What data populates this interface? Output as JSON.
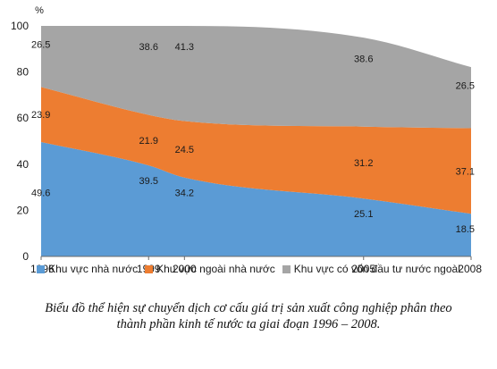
{
  "chart_data": {
    "type": "area",
    "stacked": true,
    "ylabel": "%",
    "ylim": [
      0,
      100
    ],
    "yticks": [
      0,
      20,
      40,
      60,
      80,
      100
    ],
    "x": [
      1996,
      1999,
      2000,
      2005,
      2008
    ],
    "x_tick_labels": [
      "1996",
      "1999",
      "2000",
      "2005",
      "2008"
    ],
    "series": [
      {
        "name": "Khu vực nhà nước",
        "color": "#5b9bd5",
        "values": [
          49.6,
          39.5,
          34.2,
          25.1,
          18.5
        ],
        "labels": [
          "49.6",
          "39.5",
          "34.2",
          "25.1",
          "18.5"
        ]
      },
      {
        "name": "Khu vực ngoài nhà nước",
        "color": "#ed7d31",
        "values": [
          23.9,
          21.9,
          24.5,
          31.2,
          37.1
        ],
        "labels": [
          "23.9",
          "21.9",
          "24.5",
          "31.2",
          "37.1"
        ]
      },
      {
        "name": "Khu vực có vốn đầu tư nước ngoài",
        "color": "#a5a5a5",
        "values": [
          26.5,
          38.6,
          41.3,
          38.6,
          26.5
        ],
        "labels": [
          "26.5",
          "38.6",
          "41.3",
          "38.6",
          "26.5"
        ]
      }
    ],
    "grid": false,
    "legend": "bottom"
  },
  "caption": {
    "line1": "Biểu đồ thể hiện sự chuyển dịch cơ cấu giá trị sản xuất công nghiệp phân theo",
    "line2": "thành phần kinh tế nước ta giai đoạn 1996 – 2008."
  }
}
